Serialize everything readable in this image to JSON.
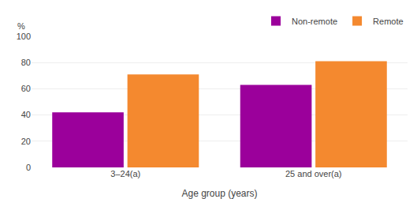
{
  "chart_data": {
    "type": "bar",
    "categories": [
      "3–24(a)",
      "25 and over(a)"
    ],
    "series": [
      {
        "name": "Non-remote",
        "color": "#9B009B",
        "values": [
          42,
          63
        ]
      },
      {
        "name": "Remote",
        "color": "#F4892F",
        "values": [
          71,
          81
        ]
      }
    ],
    "xlabel": "Age group (years)",
    "ylabel": "%",
    "ylim": [
      0,
      100
    ],
    "yticks": [
      0,
      20,
      40,
      60,
      80,
      100
    ],
    "grid": true,
    "legend": "upper right"
  }
}
